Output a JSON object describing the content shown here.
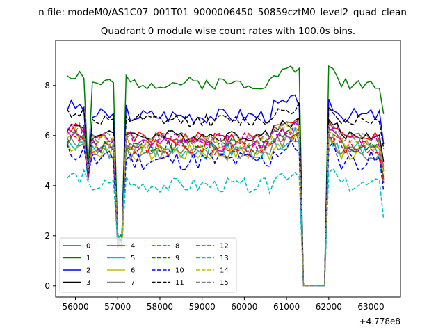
{
  "figure": {
    "suptitle": "n file: modeM0/AS1C07_001T01_9000006450_50859cztM0_level2_quad_clean",
    "offset_label": "+4.778e8"
  },
  "chart_data": {
    "type": "line",
    "title": "Quadrant 0 module wise count rates with 100.0s bins.",
    "xlabel": "",
    "ylabel": "",
    "x_offset": 477800000,
    "xlim": [
      55530,
      63700
    ],
    "ylim": [
      -0.45,
      9.8
    ],
    "xticks": [
      56000,
      57000,
      58000,
      59000,
      60000,
      61000,
      62000,
      63000
    ],
    "xtick_labels": [
      "56000",
      "57000",
      "58000",
      "59000",
      "60000",
      "61000",
      "62000",
      "63000"
    ],
    "yticks": [
      0,
      2,
      4,
      6,
      8
    ],
    "ytick_labels": [
      "0",
      "2",
      "4",
      "6",
      "8"
    ],
    "x_start": 55800,
    "x_step": 100,
    "gap": {
      "start": 61400,
      "end": 61900
    },
    "series": [
      {
        "name": "0",
        "color": "#ff0000",
        "dash": "solid",
        "level": 5.9,
        "amp": 0.25,
        "seed": 1
      },
      {
        "name": "1",
        "color": "#008000",
        "dash": "solid",
        "level": 8.1,
        "amp": 0.25,
        "seed": 2
      },
      {
        "name": "2",
        "color": "#0000ff",
        "dash": "solid",
        "level": 6.8,
        "amp": 0.3,
        "seed": 3
      },
      {
        "name": "3",
        "color": "#000000",
        "dash": "solid",
        "level": 6.0,
        "amp": 0.22,
        "seed": 4
      },
      {
        "name": "4",
        "color": "#bf00bf",
        "dash": "solid",
        "level": 5.6,
        "amp": 0.3,
        "seed": 5
      },
      {
        "name": "5",
        "color": "#00bfbf",
        "dash": "solid",
        "level": 5.4,
        "amp": 0.35,
        "seed": 6
      },
      {
        "name": "6",
        "color": "#bfbf00",
        "dash": "solid",
        "level": 5.3,
        "amp": 0.35,
        "seed": 7
      },
      {
        "name": "7",
        "color": "#808080",
        "dash": "solid",
        "level": 5.3,
        "amp": 0.3,
        "seed": 8
      },
      {
        "name": "8",
        "color": "#ff0000",
        "dash": "dashed",
        "level": 5.5,
        "amp": 0.3,
        "seed": 9
      },
      {
        "name": "9",
        "color": "#008000",
        "dash": "dashed",
        "level": 5.6,
        "amp": 0.3,
        "seed": 10
      },
      {
        "name": "10",
        "color": "#0000ff",
        "dash": "dashed",
        "level": 5.0,
        "amp": 0.4,
        "seed": 11
      },
      {
        "name": "11",
        "color": "#000000",
        "dash": "dashed",
        "level": 6.6,
        "amp": 0.25,
        "seed": 12
      },
      {
        "name": "12",
        "color": "#bf00bf",
        "dash": "dashed",
        "level": 5.8,
        "amp": 0.35,
        "seed": 13
      },
      {
        "name": "13",
        "color": "#00bfbf",
        "dash": "dashed",
        "level": 4.0,
        "amp": 0.3,
        "seed": 14
      },
      {
        "name": "14",
        "color": "#bfbf00",
        "dash": "dashed",
        "level": 5.7,
        "amp": 0.3,
        "seed": 15
      },
      {
        "name": "15",
        "color": "#808080",
        "dash": "dashed",
        "level": 5.9,
        "amp": 0.25,
        "seed": 16
      }
    ],
    "legend": {
      "location": "lower-left",
      "columns": 4
    }
  }
}
